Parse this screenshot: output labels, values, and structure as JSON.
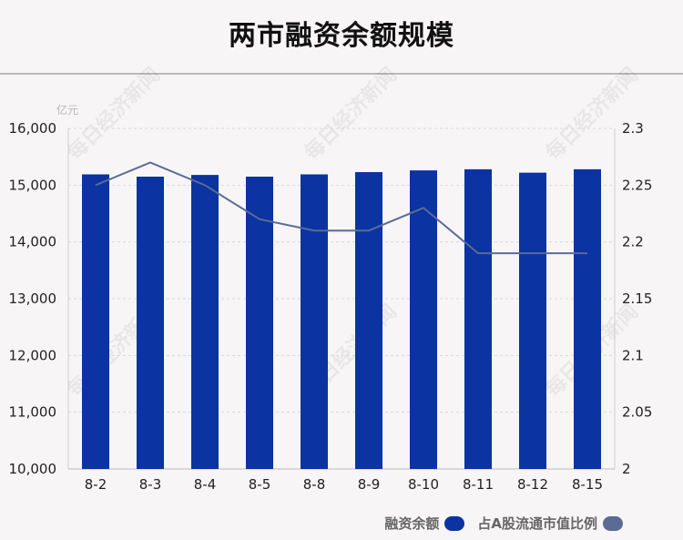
{
  "title": "两市融资余额规模",
  "watermark": "每日经济新闻",
  "colors": {
    "bar": "#0b33a1",
    "line": "#5a6b96",
    "grid": "#d9d9d9",
    "background": "#f8f5f7"
  },
  "legend": {
    "bar_label": "融资余额",
    "line_label": "占A股流通市值比例"
  },
  "chart_data": {
    "type": "bar",
    "categories": [
      "8-2",
      "8-3",
      "8-4",
      "8-5",
      "8-8",
      "8-9",
      "8-10",
      "8-11",
      "8-12",
      "8-15"
    ],
    "series": [
      {
        "name": "融资余额",
        "type": "bar",
        "axis": "left",
        "values": [
          15190,
          15150,
          15180,
          15150,
          15190,
          15230,
          15260,
          15280,
          15220,
          15280
        ]
      },
      {
        "name": "占A股流通市值比例",
        "type": "line",
        "axis": "right",
        "values": [
          2.25,
          2.27,
          2.25,
          2.22,
          2.21,
          2.21,
          2.23,
          2.19,
          2.19,
          2.19
        ]
      }
    ],
    "y_left": {
      "unit": "亿元",
      "range": [
        10000,
        16000
      ],
      "ticks": [
        "10,000",
        "11,000",
        "12,000",
        "13,000",
        "14,000",
        "15,000",
        "16,000"
      ]
    },
    "y_right": {
      "range": [
        2,
        2.3
      ],
      "ticks": [
        "2",
        "2.05",
        "2.1",
        "2.15",
        "2.2",
        "2.25",
        "2.3"
      ]
    },
    "grid": true,
    "legend_position": "bottom-right"
  }
}
